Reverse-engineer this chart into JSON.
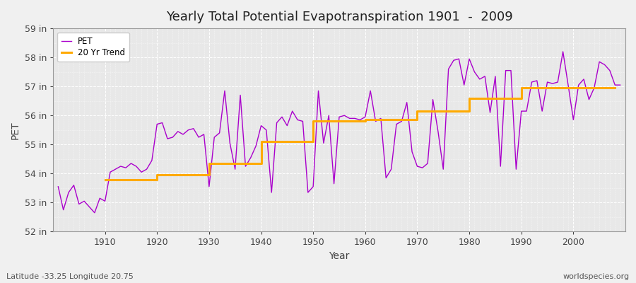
{
  "title": "Yearly Total Potential Evapotranspiration 1901  -  2009",
  "xlabel": "Year",
  "ylabel": "PET",
  "subtitle_left": "Latitude -33.25 Longitude 20.75",
  "subtitle_right": "worldspecies.org",
  "background_color": "#f0f0f0",
  "plot_bg_color": "#e8e8e8",
  "pet_color": "#aa00cc",
  "trend_color": "#ffaa00",
  "ylim": [
    52,
    59
  ],
  "ytick_labels": [
    "52 in",
    "53 in",
    "54 in",
    "55 in",
    "56 in",
    "57 in",
    "58 in",
    "59 in"
  ],
  "ytick_values": [
    52,
    53,
    54,
    55,
    56,
    57,
    58,
    59
  ],
  "years": [
    1901,
    1902,
    1903,
    1904,
    1905,
    1906,
    1907,
    1908,
    1909,
    1910,
    1911,
    1912,
    1913,
    1914,
    1915,
    1916,
    1917,
    1918,
    1919,
    1920,
    1921,
    1922,
    1923,
    1924,
    1925,
    1926,
    1927,
    1928,
    1929,
    1930,
    1931,
    1932,
    1933,
    1934,
    1935,
    1936,
    1937,
    1938,
    1939,
    1940,
    1941,
    1942,
    1943,
    1944,
    1945,
    1946,
    1947,
    1948,
    1949,
    1950,
    1951,
    1952,
    1953,
    1954,
    1955,
    1956,
    1957,
    1958,
    1959,
    1960,
    1961,
    1962,
    1963,
    1964,
    1965,
    1966,
    1967,
    1968,
    1969,
    1970,
    1971,
    1972,
    1973,
    1974,
    1975,
    1976,
    1977,
    1978,
    1979,
    1980,
    1981,
    1982,
    1983,
    1984,
    1985,
    1986,
    1987,
    1988,
    1989,
    1990,
    1991,
    1992,
    1993,
    1994,
    1995,
    1996,
    1997,
    1998,
    1999,
    2000,
    2001,
    2002,
    2003,
    2004,
    2005,
    2006,
    2007,
    2008,
    2009
  ],
  "pet_values": [
    53.55,
    52.75,
    53.35,
    53.6,
    52.95,
    53.05,
    52.85,
    52.65,
    53.15,
    53.05,
    54.05,
    54.15,
    54.25,
    54.2,
    54.35,
    54.25,
    54.05,
    54.15,
    54.45,
    55.7,
    55.75,
    55.2,
    55.25,
    55.45,
    55.35,
    55.5,
    55.55,
    55.25,
    55.35,
    53.55,
    55.25,
    55.4,
    56.85,
    55.05,
    54.15,
    56.7,
    54.25,
    54.55,
    54.95,
    55.65,
    55.5,
    53.35,
    55.75,
    55.95,
    55.65,
    56.15,
    55.85,
    55.8,
    53.35,
    53.55,
    56.85,
    55.05,
    56.0,
    53.65,
    55.95,
    56.0,
    55.9,
    55.9,
    55.85,
    55.95,
    56.85,
    55.8,
    55.9,
    53.85,
    54.15,
    55.7,
    55.8,
    56.45,
    54.75,
    54.25,
    54.2,
    54.35,
    56.55,
    55.45,
    54.15,
    57.6,
    57.9,
    57.95,
    57.05,
    57.95,
    57.5,
    57.25,
    57.35,
    56.1,
    57.35,
    54.25,
    57.55,
    57.55,
    54.15,
    56.15,
    56.15,
    57.15,
    57.2,
    56.15,
    57.15,
    57.1,
    57.15,
    58.2,
    57.05,
    55.85,
    57.05,
    57.25,
    56.55,
    56.95,
    57.85,
    57.75,
    57.55,
    57.05,
    57.05
  ],
  "trend_values": [
    null,
    null,
    null,
    null,
    null,
    null,
    null,
    null,
    null,
    53.78,
    53.78,
    53.78,
    53.78,
    53.78,
    53.78,
    53.78,
    53.78,
    53.78,
    53.78,
    53.95,
    53.95,
    53.95,
    53.95,
    53.95,
    53.95,
    53.95,
    53.95,
    53.95,
    53.95,
    54.35,
    54.35,
    54.35,
    54.35,
    54.35,
    54.35,
    54.35,
    54.35,
    54.35,
    54.35,
    55.1,
    55.1,
    55.1,
    55.1,
    55.1,
    55.1,
    55.1,
    55.1,
    55.1,
    55.1,
    55.8,
    55.8,
    55.8,
    55.8,
    55.8,
    55.8,
    55.8,
    55.8,
    55.8,
    55.8,
    55.85,
    55.85,
    55.85,
    55.85,
    55.85,
    55.85,
    55.85,
    55.85,
    55.85,
    55.85,
    56.15,
    56.15,
    56.15,
    56.15,
    56.15,
    56.15,
    56.15,
    56.15,
    56.15,
    56.15,
    56.6,
    56.6,
    56.6,
    56.6,
    56.6,
    56.6,
    56.6,
    56.6,
    56.6,
    56.6,
    56.95,
    56.95,
    56.95,
    56.95,
    56.95,
    56.95,
    56.95,
    56.95,
    56.95,
    56.95,
    56.95,
    56.95,
    56.95,
    56.95,
    56.95,
    56.95,
    56.95,
    56.95,
    56.95
  ]
}
